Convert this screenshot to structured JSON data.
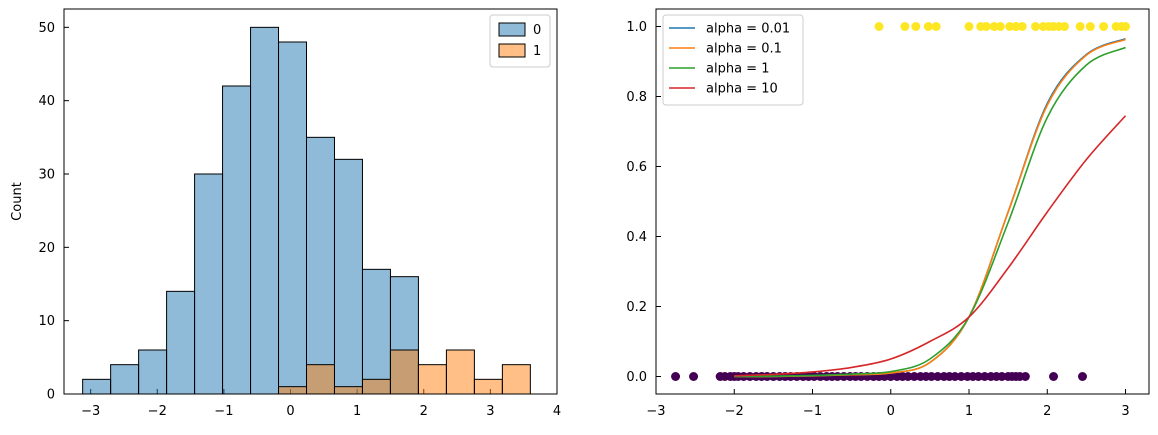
{
  "chart_data": [
    {
      "type": "bar",
      "subtype": "histogram",
      "ylabel": "Count",
      "xlim": [
        -3.4,
        4.0
      ],
      "ylim": [
        0,
        52.5
      ],
      "xticks": [
        -3,
        -2,
        -1,
        0,
        1,
        2,
        3,
        4
      ],
      "xtick_labels": [
        "−3",
        "−2",
        "−1",
        "0",
        "1",
        "2",
        "3",
        "4"
      ],
      "yticks": [
        0,
        10,
        20,
        30,
        40,
        50
      ],
      "ytick_labels": [
        "0",
        "10",
        "20",
        "30",
        "40",
        "50"
      ],
      "bin_edges": [
        -3.12,
        -2.7,
        -2.28,
        -1.86,
        -1.44,
        -1.02,
        -0.6,
        -0.18,
        0.24,
        0.66,
        1.08,
        1.5,
        1.92,
        2.34,
        2.76,
        3.18,
        3.6
      ],
      "series": [
        {
          "name": "0",
          "color": "#1f77b4",
          "values": [
            2,
            4,
            6,
            14,
            30,
            42,
            50,
            48,
            35,
            32,
            17,
            16,
            0,
            0,
            0,
            0
          ]
        },
        {
          "name": "1",
          "color": "#ff7f0e",
          "values": [
            0,
            0,
            0,
            0,
            0,
            0,
            0,
            1,
            4,
            1,
            2,
            6,
            4,
            6,
            2,
            4
          ]
        }
      ],
      "overlap_color": "#8e979b",
      "legend": {
        "position": "upper right",
        "entries": [
          "0",
          "1"
        ]
      },
      "grid": false
    },
    {
      "type": "scatter",
      "overlay": "line",
      "xlim": [
        -3.0,
        3.3
      ],
      "ylim": [
        -0.05,
        1.05
      ],
      "xticks": [
        -3,
        -2,
        -1,
        0,
        1,
        2,
        3
      ],
      "xtick_labels": [
        "−3",
        "−2",
        "−1",
        "0",
        "1",
        "2",
        "3"
      ],
      "yticks": [
        0.0,
        0.2,
        0.4,
        0.6,
        0.8,
        1.0
      ],
      "ytick_labels": [
        "0.0",
        "0.2",
        "0.4",
        "0.6",
        "0.8",
        "1.0"
      ],
      "scatter": {
        "class_1_color": "#fde725",
        "class_0_color": "#440154",
        "class_1_x": [
          -0.15,
          0.18,
          0.32,
          0.48,
          0.58,
          1.0,
          1.15,
          1.22,
          1.32,
          1.4,
          1.52,
          1.6,
          1.68,
          1.85,
          1.95,
          2.02,
          2.08,
          2.15,
          2.22,
          2.42,
          2.55,
          2.72,
          2.88,
          2.95,
          3.0
        ],
        "class_0_x": [
          -2.75,
          -2.52,
          -2.18,
          -2.12,
          -2.05,
          -2.0,
          -1.95,
          -1.88,
          -1.8,
          -1.72,
          -1.65,
          -1.58,
          -1.5,
          -1.42,
          -1.35,
          -1.28,
          -1.2,
          -1.12,
          -1.05,
          -0.98,
          -0.9,
          -0.82,
          -0.75,
          -0.68,
          -0.6,
          -0.52,
          -0.45,
          -0.38,
          -0.3,
          -0.22,
          -0.15,
          -0.08,
          0.0,
          0.08,
          0.15,
          0.22,
          0.3,
          0.38,
          0.45,
          0.52,
          0.6,
          0.68,
          0.75,
          0.82,
          0.9,
          0.98,
          1.05,
          1.12,
          1.2,
          1.28,
          1.35,
          1.42,
          1.5,
          1.55,
          1.6,
          1.65,
          1.72,
          2.08,
          2.45
        ]
      },
      "series": [
        {
          "name": "alpha = 0.01",
          "color": "#1f77b4",
          "x": [
            -2.0,
            -1.5,
            -1.0,
            -0.5,
            0.0,
            0.5,
            1.0,
            1.5,
            2.0,
            2.5,
            3.0
          ],
          "y": [
            0.0,
            0.0,
            0.002,
            0.005,
            0.01,
            0.04,
            0.17,
            0.47,
            0.78,
            0.92,
            0.965
          ]
        },
        {
          "name": "alpha = 0.1",
          "color": "#ff7f0e",
          "x": [
            -2.0,
            -1.5,
            -1.0,
            -0.5,
            0.0,
            0.5,
            1.0,
            1.5,
            2.0,
            2.5,
            3.0
          ],
          "y": [
            0.0,
            0.0,
            0.002,
            0.005,
            0.01,
            0.04,
            0.17,
            0.47,
            0.775,
            0.918,
            0.963
          ]
        },
        {
          "name": "alpha = 1",
          "color": "#2ca02c",
          "x": [
            -2.0,
            -1.5,
            -1.0,
            -0.5,
            0.0,
            0.5,
            1.0,
            1.5,
            2.0,
            2.5,
            3.0
          ],
          "y": [
            0.0,
            0.001,
            0.003,
            0.007,
            0.014,
            0.05,
            0.17,
            0.44,
            0.74,
            0.89,
            0.94
          ]
        },
        {
          "name": "alpha = 10",
          "color": "#d62728",
          "x": [
            -2.0,
            -1.5,
            -1.0,
            -0.5,
            0.0,
            0.5,
            1.0,
            1.5,
            2.0,
            2.5,
            3.0
          ],
          "y": [
            0.002,
            0.006,
            0.013,
            0.026,
            0.05,
            0.1,
            0.17,
            0.31,
            0.47,
            0.62,
            0.745
          ]
        }
      ],
      "legend": {
        "position": "upper left",
        "entries": [
          "alpha = 0.01",
          "alpha = 0.1",
          "alpha = 1",
          "alpha = 10"
        ]
      },
      "grid": false
    }
  ]
}
